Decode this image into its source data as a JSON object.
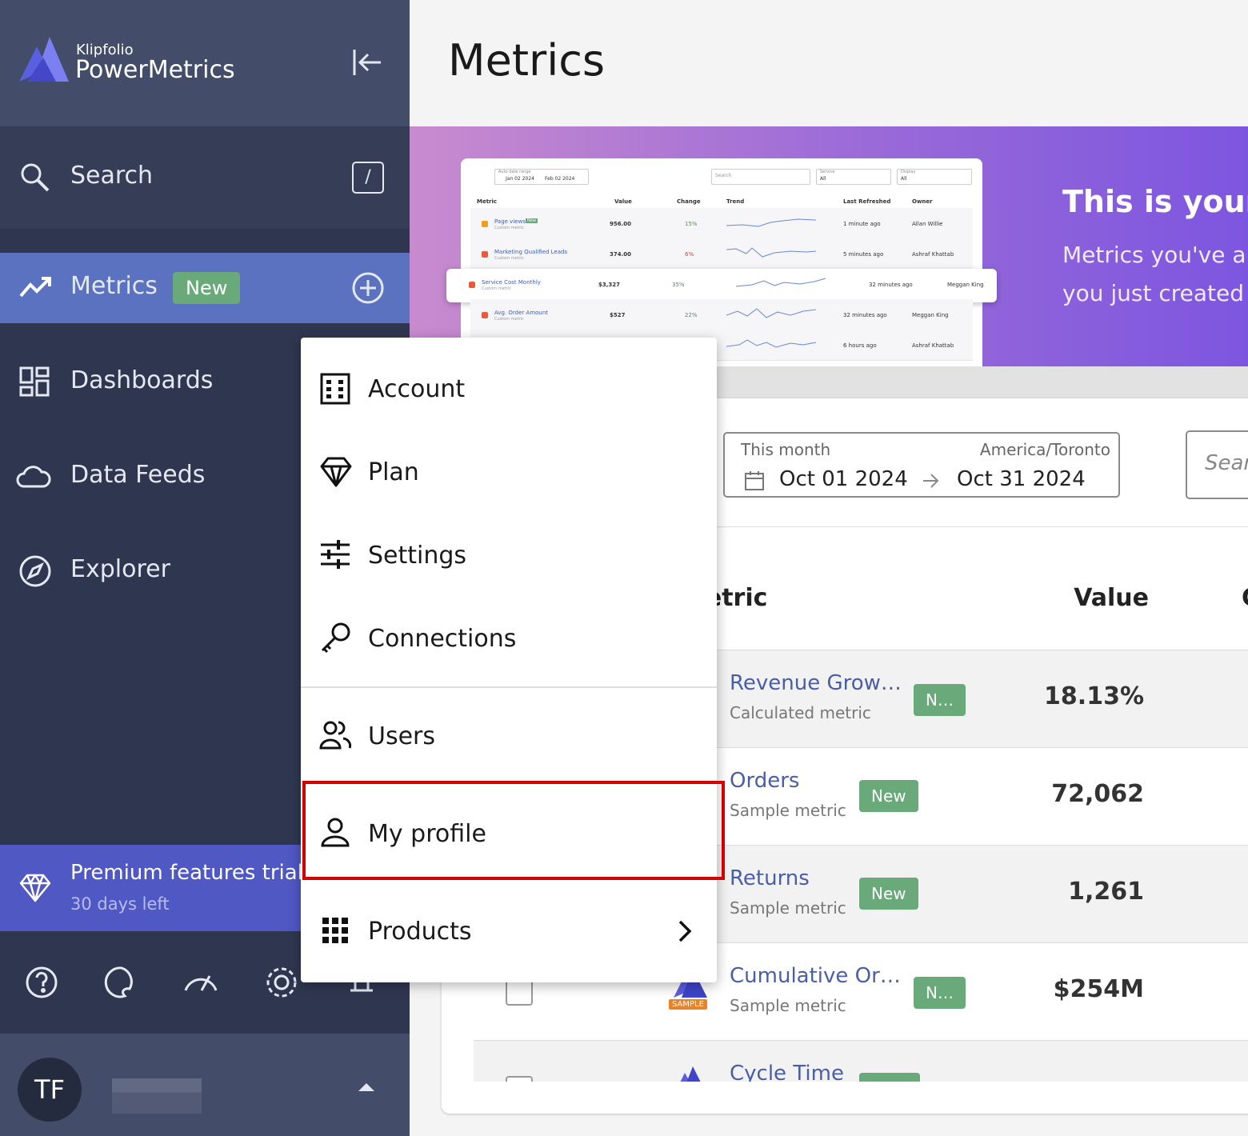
{
  "sidebar": {
    "brand": "Klipfolio",
    "product": "PowerMetrics",
    "search": "Search",
    "shortcut": "/",
    "nav": [
      {
        "label": "Metrics",
        "badge": "New"
      },
      {
        "label": "Dashboards"
      },
      {
        "label": "Data Feeds"
      },
      {
        "label": "Explorer"
      }
    ],
    "trial": {
      "title": "Premium features trial",
      "subtitle": "30 days left"
    },
    "user": {
      "initials": "TF"
    }
  },
  "header": {
    "title": "Metrics"
  },
  "banner": {
    "title": "This is your",
    "lines": [
      "Metrics you've a",
      "you just created"
    ],
    "preview": {
      "date_label": "Auto date range",
      "date_from": "Jan 02 2024",
      "date_to": "Feb 02 2024",
      "search": "Search",
      "service_label": "Service",
      "service_value": "All",
      "display_label": "Display",
      "display_value": "All",
      "columns": [
        "Metric",
        "Value",
        "Change",
        "Trend",
        "Last Refreshed",
        "Owner"
      ],
      "rows": [
        {
          "name": "Page views",
          "badge": "New",
          "sub": "Custom metric",
          "value": "956.00",
          "change": "15%",
          "refreshed": "1 minute ago",
          "owner": "Allan Willie"
        },
        {
          "name": "Marketing Qualified Leads",
          "sub": "Custom metric",
          "value": "374.00",
          "change": "6%",
          "refreshed": "5 minutes ago",
          "owner": "Ashraf Khattab"
        },
        {
          "name": "Service Cost Monthly",
          "sub": "Custom metric",
          "value": "$3,327",
          "change": "35%",
          "refreshed": "32 minutes ago",
          "owner": "Meggan King"
        },
        {
          "name": "Avg. Order Amount",
          "sub": "Custom metric",
          "value": "$527",
          "change": "22%",
          "refreshed": "32 minutes ago",
          "owner": "Meggan King"
        },
        {
          "refreshed": "6 hours ago",
          "owner": "Ashraf Khattab"
        }
      ]
    }
  },
  "filters": {
    "range_label": "This month",
    "timezone": "America/Toronto",
    "from": "Oct 01 2024",
    "to": "Oct 31 2024",
    "search": "Search"
  },
  "table": {
    "columns": [
      "Metric",
      "Value",
      "Change"
    ],
    "sample_badge": "SAMPLE",
    "rows": [
      {
        "name": "Revenue Grow…",
        "sub": "Calculated metric",
        "badge": "N…",
        "value": "18.13%"
      },
      {
        "name": "Orders",
        "sub": "Sample metric",
        "badge": "New",
        "value": "72,062"
      },
      {
        "name": "Returns",
        "sub": "Sample metric",
        "badge": "New",
        "value": "1,261"
      },
      {
        "name": "Cumulative Or…",
        "sub": "Sample metric",
        "badge": "N…",
        "value": "$254M"
      },
      {
        "name": "Cycle Time"
      }
    ]
  },
  "menu": {
    "items": [
      "Account",
      "Plan",
      "Settings",
      "Connections",
      "Users",
      "My profile",
      "Products"
    ]
  }
}
